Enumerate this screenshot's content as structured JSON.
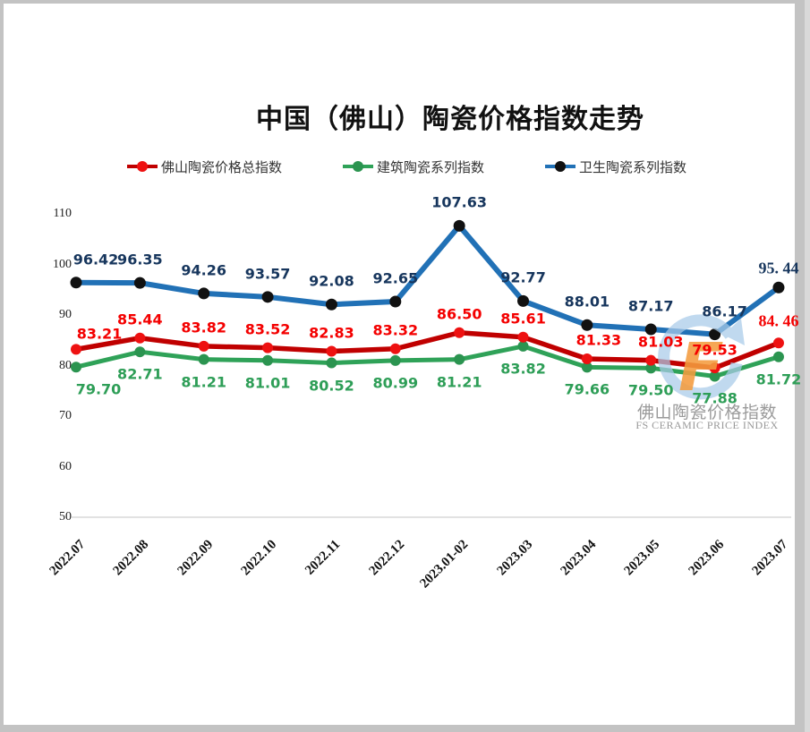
{
  "title": "中国（佛山）陶瓷价格指数走势",
  "watermark": {
    "cn": "佛山陶瓷价格指数",
    "en": "FS CERAMIC PRICE INDEX"
  },
  "chart_data": {
    "type": "line",
    "title": "中国（佛山）陶瓷价格指数走势",
    "categories": [
      "2022.07",
      "2022.08",
      "2022.09",
      "2022.10",
      "2022.11",
      "2022.12",
      "2023.01-02",
      "2023.03",
      "2023.04",
      "2023.05",
      "2023.06",
      "2023.07"
    ],
    "series": [
      {
        "name": "佛山陶瓷价格总指数",
        "line_color": "#c00000",
        "marker_color": "#ee1111",
        "label_color": "#f40000",
        "values": [
          83.21,
          85.44,
          83.82,
          83.52,
          82.83,
          83.32,
          86.5,
          85.61,
          81.33,
          81.03,
          79.53,
          84.46
        ],
        "labels": [
          "83.21",
          "85.44",
          "83.82",
          "83.52",
          "82.83",
          "83.32",
          "86.50",
          "85.61",
          "81.33",
          "81.03",
          "79.53",
          "84. 46"
        ]
      },
      {
        "name": "建筑陶瓷系列指数",
        "line_color": "#2fa258",
        "marker_color": "#2b9450",
        "label_color": "#2e9e57",
        "values": [
          79.7,
          82.71,
          81.21,
          81.01,
          80.52,
          80.99,
          81.21,
          83.82,
          79.66,
          79.5,
          77.88,
          81.72
        ],
        "labels": [
          "79.70",
          "82.71",
          "81.21",
          "81.01",
          "80.52",
          "80.99",
          "81.21",
          "83.82",
          "79.66",
          "79.50",
          "77.88",
          "81.72"
        ]
      },
      {
        "name": "卫生陶瓷系列指数",
        "line_color": "#2171b6",
        "marker_color": "#111111",
        "label_color": "#17365d",
        "values": [
          96.42,
          96.35,
          94.26,
          93.57,
          92.08,
          92.65,
          107.63,
          92.77,
          88.01,
          87.17,
          86.17,
          95.44
        ],
        "labels": [
          "96.42",
          "96.35",
          "94.26",
          "93.57",
          "92.08",
          "92.65",
          "107.63",
          "92.77",
          "88.01",
          "87.17",
          "86.17",
          "95. 44"
        ]
      }
    ],
    "ylim": [
      50,
      110
    ],
    "yticks": [
      110,
      100,
      90,
      80,
      70,
      60,
      50
    ],
    "grid": false,
    "legend_position": "top",
    "axis_line_color": "#d9d9d9",
    "watermark_logo_colors": {
      "arrow": "#a9cbe9",
      "letter": "#f49c3e"
    }
  }
}
